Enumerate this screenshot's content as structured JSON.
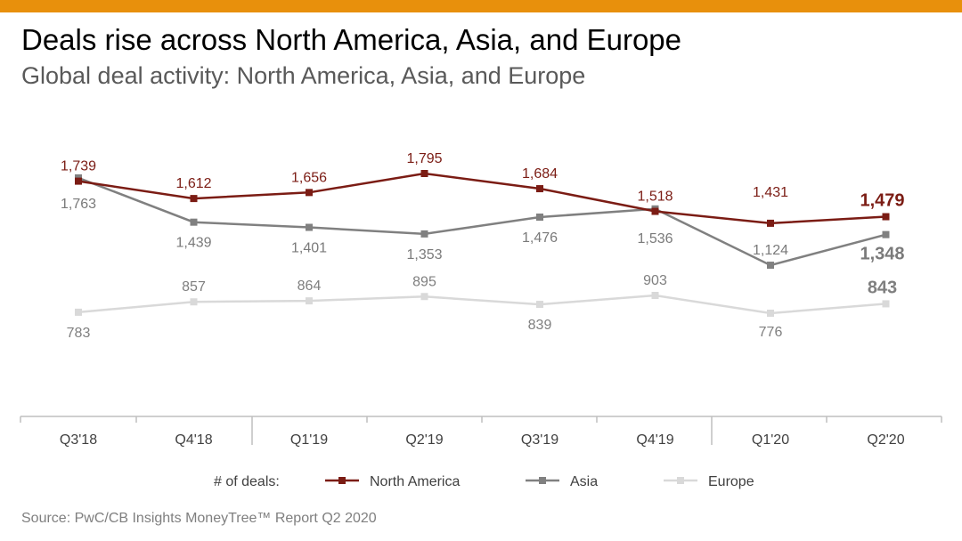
{
  "title": "Deals rise across North America, Asia, and Europe",
  "subtitle": "Global deal activity: North America, Asia, and Europe",
  "source": "Source: PwC/CB Insights MoneyTree™ Report Q2 2020",
  "colors": {
    "top_bar": "#e8900c",
    "north_america": "#7b1c14",
    "asia": "#808080",
    "europe": "#d9d9d9",
    "axis": "#bfbfbf",
    "text": "#404040"
  },
  "chart_data": {
    "type": "line",
    "categories": [
      "Q3'18",
      "Q4'18",
      "Q1'19",
      "Q2'19",
      "Q3'19",
      "Q4'19",
      "Q1'20",
      "Q2'20"
    ],
    "legend_title": "# of deals:",
    "legend_position": "bottom",
    "grid": false,
    "series": [
      {
        "name": "North America",
        "values": [
          1739,
          1612,
          1656,
          1795,
          1684,
          1518,
          1431,
          1479
        ],
        "labels": [
          "1,739",
          "1,612",
          "1,656",
          "1,795",
          "1,684",
          "1,518",
          "1,431",
          "1,479"
        ]
      },
      {
        "name": "Asia",
        "values": [
          1763,
          1439,
          1401,
          1353,
          1476,
          1536,
          1124,
          1348
        ],
        "labels": [
          "1,763",
          "1,439",
          "1,401",
          "1,353",
          "1,476",
          "1,536",
          "1,124",
          "1,348"
        ]
      },
      {
        "name": "Europe",
        "values": [
          783,
          857,
          864,
          895,
          839,
          903,
          776,
          843
        ],
        "labels": [
          "783",
          "857",
          "864",
          "895",
          "839",
          "903",
          "776",
          "843"
        ]
      }
    ]
  }
}
